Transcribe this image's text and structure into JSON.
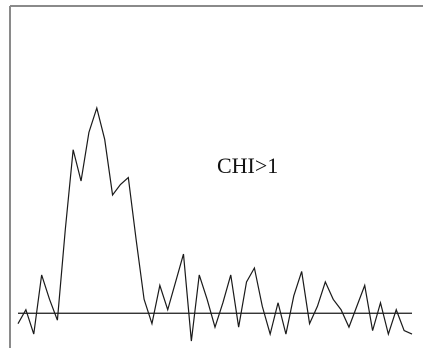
{
  "chart_data": {
    "type": "line",
    "title": "",
    "xlabel": "",
    "ylabel": "",
    "grid": false,
    "legend": "none",
    "annotation": "CHI>1",
    "baseline": 0,
    "x": [
      0,
      1,
      2,
      3,
      4,
      5,
      6,
      7,
      8,
      9,
      10,
      11,
      12,
      13,
      14,
      15,
      16,
      17,
      18,
      19,
      20,
      21,
      22,
      23,
      24,
      25,
      26,
      27,
      28,
      29,
      30,
      31,
      32,
      33,
      34,
      35,
      36,
      37,
      38,
      39,
      40,
      41,
      42,
      43,
      44,
      45,
      46,
      47,
      48,
      49,
      50
    ],
    "series": [
      {
        "values": [
          -0.3,
          0.1,
          -0.6,
          1.1,
          0.4,
          -0.2,
          2.4,
          4.7,
          3.8,
          5.2,
          5.9,
          5.0,
          3.4,
          3.7,
          3.9,
          2.1,
          0.4,
          -0.3,
          0.8,
          0.1,
          0.9,
          1.7,
          -0.8,
          1.1,
          0.4,
          -0.4,
          0.3,
          1.1,
          -0.4,
          0.9,
          1.3,
          0.2,
          -0.6,
          0.3,
          -0.6,
          0.5,
          1.2,
          -0.3,
          0.2,
          0.9,
          0.4,
          0.1,
          -0.4,
          0.2,
          0.8,
          -0.5,
          0.3,
          -0.6,
          0.1,
          -0.5,
          -0.6
        ]
      }
    ],
    "xlim": [
      0,
      50
    ],
    "ylim": [
      -1.0,
      8.2
    ],
    "colors": {
      "line": "#1a1a1a",
      "frame": "#8a8a8a",
      "background": "#ffffff"
    }
  }
}
